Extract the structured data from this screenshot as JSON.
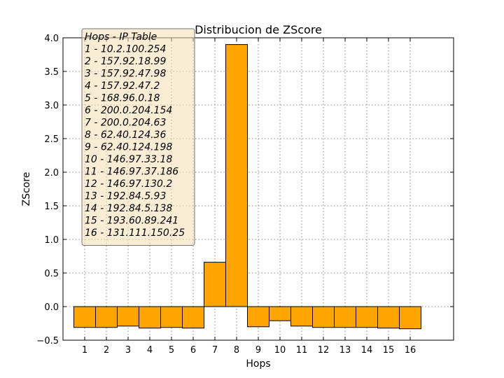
{
  "chart_data": {
    "type": "bar",
    "title": "Distribucion de ZScore",
    "xlabel": "Hops",
    "ylabel": "ZScore",
    "categories": [
      "1",
      "2",
      "3",
      "4",
      "5",
      "6",
      "7",
      "8",
      "9",
      "10",
      "11",
      "12",
      "13",
      "14",
      "15",
      "16"
    ],
    "values": [
      -0.31,
      -0.31,
      -0.29,
      -0.32,
      -0.31,
      -0.32,
      0.66,
      3.9,
      -0.3,
      -0.21,
      -0.29,
      -0.31,
      -0.31,
      -0.31,
      -0.32,
      -0.33
    ],
    "ylim": [
      -0.5,
      4.0
    ],
    "xlim": [
      0,
      18
    ],
    "yticks": [
      "−0.5",
      "0.0",
      "0.5",
      "1.0",
      "1.5",
      "2.0",
      "2.5",
      "3.0",
      "3.5",
      "4.0"
    ],
    "ytick_values": [
      -0.5,
      0.0,
      0.5,
      1.0,
      1.5,
      2.0,
      2.5,
      3.0,
      3.5,
      4.0
    ],
    "grid": true,
    "bar_color": "#ffa500",
    "legend_placement": "top-left",
    "legend_title": "Hops - IP Table",
    "legend_entries": [
      "1 - 10.2.100.254",
      "2 - 157.92.18.99",
      "3 - 157.92.47.98",
      "4 - 157.92.47.2",
      "5 - 168.96.0.18",
      "6 - 200.0.204.154",
      "7 - 200.0.204.63",
      "8 - 62.40.124.36",
      "9 - 62.40.124.198",
      "10 - 146.97.33.18",
      "11 - 146.97.37.186",
      "12 - 146.97.130.2",
      "13 - 192.84.5.93",
      "14 - 192.84.5.138",
      "15 - 193.60.89.241",
      "16 - 131.111.150.25"
    ]
  }
}
